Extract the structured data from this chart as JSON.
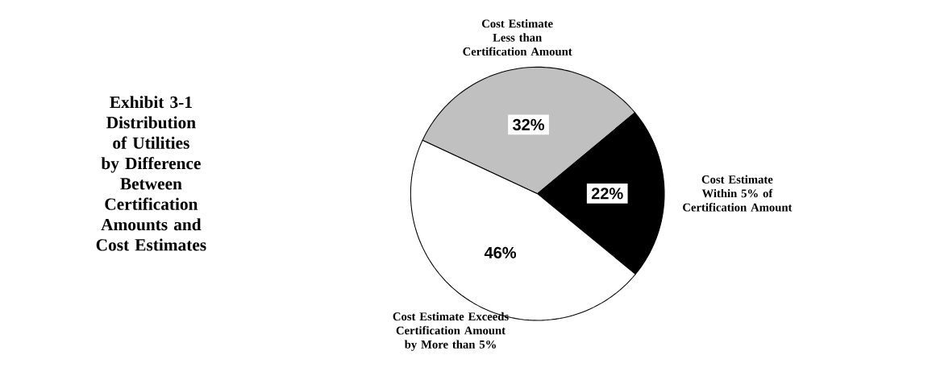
{
  "chart_data": {
    "type": "pie",
    "title": "Exhibit 3-1 Distribution of Utilities by Difference Between Certification Amounts and Cost Estimates",
    "categories": [
      "Cost Estimate Less than Certification Amount",
      "Cost Estimate Within 5% of Certification Amount",
      "Cost Estimate Exceeds Certification Amount by More than 5%"
    ],
    "values": [
      32,
      22,
      46
    ],
    "colors": [
      "#c0c0c0",
      "#000000",
      "#ffffff"
    ],
    "value_labels": [
      "32%",
      "22%",
      "46%"
    ]
  }
}
